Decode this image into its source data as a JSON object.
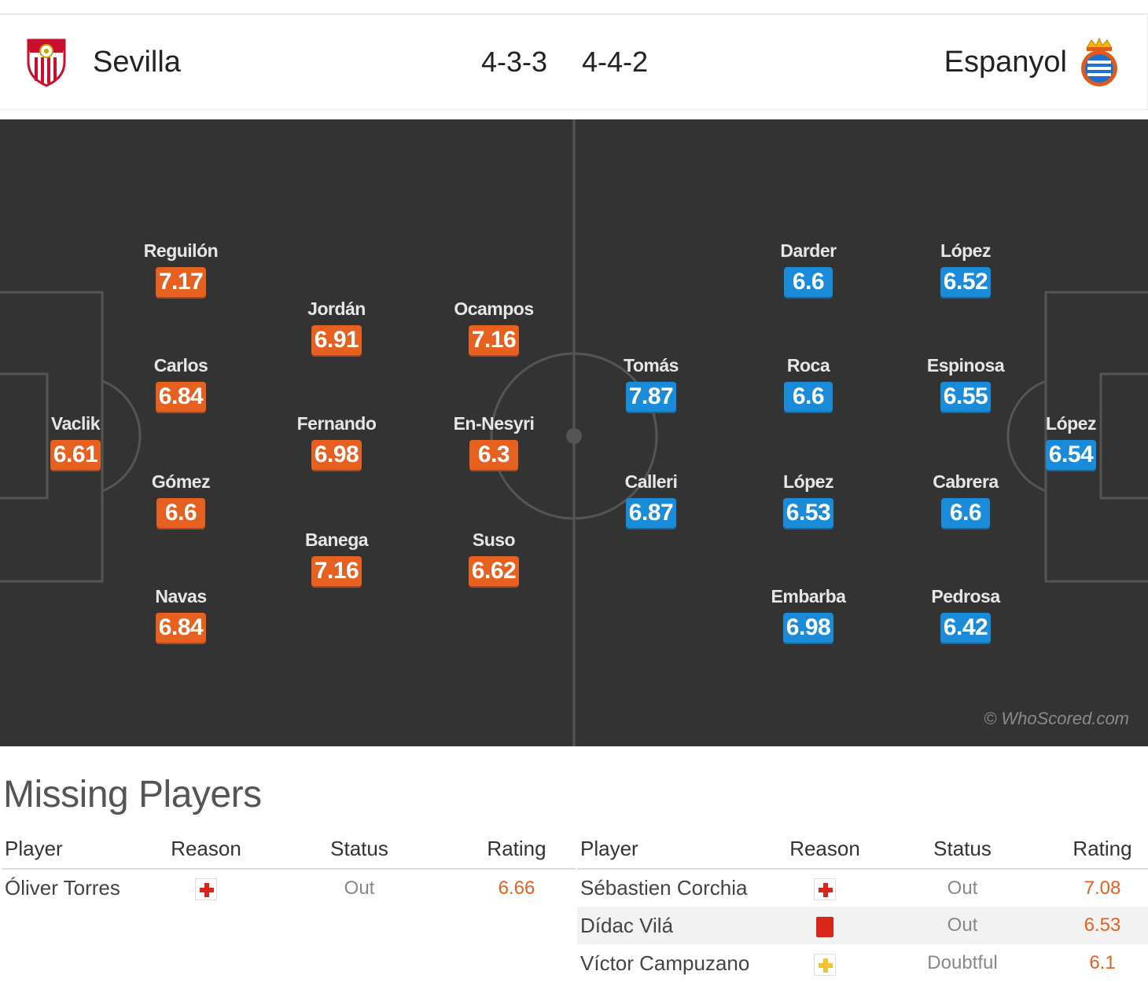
{
  "match": {
    "home": {
      "name": "Sevilla",
      "formation": "4-3-3",
      "crest": "sevilla-crest"
    },
    "away": {
      "name": "Espanyol",
      "formation": "4-4-2",
      "crest": "espanyol-crest"
    }
  },
  "pitch": {
    "watermark": "© WhoScored.com",
    "home_players": [
      {
        "name": "Vaclik",
        "rating": "6.61"
      },
      {
        "name": "Reguilón",
        "rating": "7.17"
      },
      {
        "name": "Carlos",
        "rating": "6.84"
      },
      {
        "name": "Gómez",
        "rating": "6.6"
      },
      {
        "name": "Navas",
        "rating": "6.84"
      },
      {
        "name": "Jordán",
        "rating": "6.91"
      },
      {
        "name": "Fernando",
        "rating": "6.98"
      },
      {
        "name": "Banega",
        "rating": "7.16"
      },
      {
        "name": "Ocampos",
        "rating": "7.16"
      },
      {
        "name": "En-Nesyri",
        "rating": "6.3"
      },
      {
        "name": "Suso",
        "rating": "6.62"
      }
    ],
    "away_players": [
      {
        "name": "Tomás",
        "rating": "7.87"
      },
      {
        "name": "Calleri",
        "rating": "6.87"
      },
      {
        "name": "Darder",
        "rating": "6.6"
      },
      {
        "name": "Roca",
        "rating": "6.6"
      },
      {
        "name": "López",
        "rating": "6.53"
      },
      {
        "name": "Embarba",
        "rating": "6.98"
      },
      {
        "name": "López",
        "rating": "6.52"
      },
      {
        "name": "Espinosa",
        "rating": "6.55"
      },
      {
        "name": "Cabrera",
        "rating": "6.6"
      },
      {
        "name": "Pedrosa",
        "rating": "6.42"
      },
      {
        "name": "López",
        "rating": "6.54"
      }
    ]
  },
  "missing": {
    "title": "Missing Players",
    "headers": {
      "player": "Player",
      "reason": "Reason",
      "status": "Status",
      "rating": "Rating"
    },
    "home": [
      {
        "player": "Óliver Torres",
        "reason": "injury-icon",
        "status": "Out",
        "rating": "6.66"
      }
    ],
    "away": [
      {
        "player": "Sébastien Corchia",
        "reason": "injury-icon",
        "status": "Out",
        "rating": "7.08"
      },
      {
        "player": "Dídac Vilá",
        "reason": "red-card-icon",
        "status": "Out",
        "rating": "6.53"
      },
      {
        "player": "Víctor Campuzano",
        "reason": "doubtful-injury-icon",
        "status": "Doubtful",
        "rating": "6.1"
      }
    ]
  },
  "colors": {
    "home_rating": "#e6601f",
    "away_rating": "#1a8bd9",
    "pitch": "#333333"
  }
}
